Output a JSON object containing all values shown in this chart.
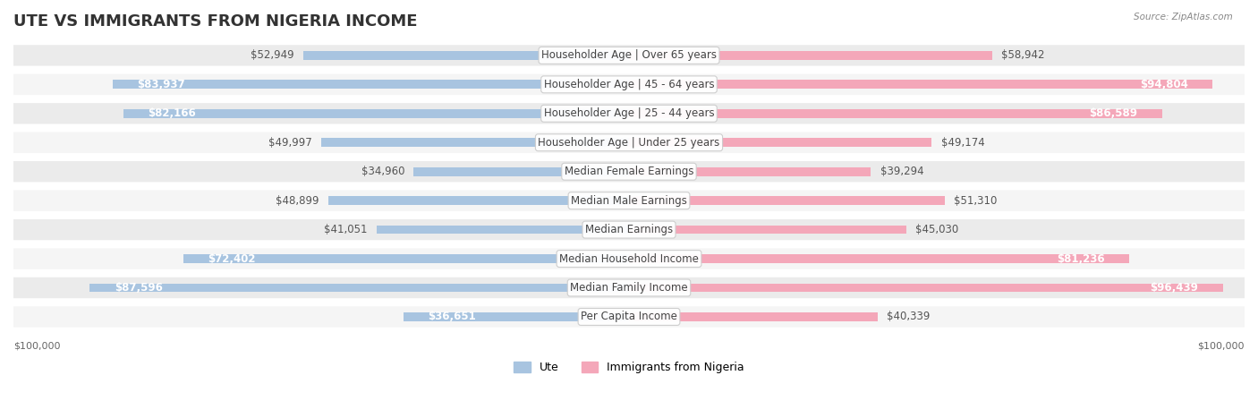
{
  "title": "UTE VS IMMIGRANTS FROM NIGERIA INCOME",
  "source": "Source: ZipAtlas.com",
  "categories": [
    "Per Capita Income",
    "Median Family Income",
    "Median Household Income",
    "Median Earnings",
    "Median Male Earnings",
    "Median Female Earnings",
    "Householder Age | Under 25 years",
    "Householder Age | 25 - 44 years",
    "Householder Age | 45 - 64 years",
    "Householder Age | Over 65 years"
  ],
  "ute_values": [
    36651,
    87596,
    72402,
    41051,
    48899,
    34960,
    49997,
    82166,
    83937,
    52949
  ],
  "nigeria_values": [
    40339,
    96439,
    81236,
    45030,
    51310,
    39294,
    49174,
    86589,
    94804,
    58942
  ],
  "ute_labels": [
    "$36,651",
    "$87,596",
    "$72,402",
    "$41,051",
    "$48,899",
    "$34,960",
    "$49,997",
    "$82,166",
    "$83,937",
    "$52,949"
  ],
  "nigeria_labels": [
    "$40,339",
    "$96,439",
    "$81,236",
    "$45,030",
    "$51,310",
    "$39,294",
    "$49,174",
    "$86,589",
    "$94,804",
    "$58,942"
  ],
  "max_value": 100000,
  "ute_color": "#a8c4e0",
  "ute_color_dark": "#7bafd4",
  "nigeria_color": "#f4a7b9",
  "nigeria_color_dark": "#e8799a",
  "ute_label_inside": [
    true,
    true,
    true,
    false,
    false,
    false,
    false,
    true,
    true,
    false
  ],
  "nigeria_label_inside": [
    false,
    true,
    true,
    false,
    false,
    false,
    false,
    true,
    true,
    false
  ],
  "background_color": "#ffffff",
  "row_bg_odd": "#f5f5f5",
  "row_bg_even": "#ebebeb",
  "title_fontsize": 13,
  "label_fontsize": 8.5,
  "category_fontsize": 8.5,
  "legend_fontsize": 9,
  "axis_label": "$100,000"
}
